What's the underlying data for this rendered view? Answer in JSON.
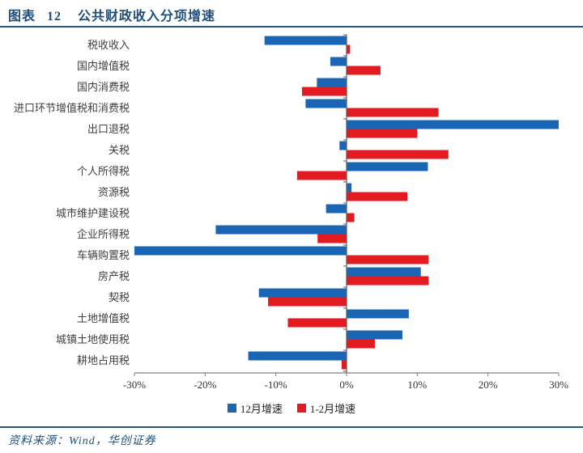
{
  "header": {
    "tag": "图表",
    "number": "12",
    "title": "公共财政收入分项增速"
  },
  "chart_data": {
    "type": "bar",
    "orientation": "horizontal",
    "categories": [
      "税收收入",
      "国内增值税",
      "国内消费税",
      "进口环节增值税和消费税",
      "出口退税",
      "关税",
      "个人所得税",
      "资源税",
      "城市维护建设税",
      "企业所得税",
      "车辆购置税",
      "房产税",
      "契税",
      "土地增值税",
      "城镇土地使用税",
      "耕地占用税"
    ],
    "series": [
      {
        "name": "12月增速",
        "color": "#1b65b5",
        "values": [
          -11.6,
          -2.3,
          -4.2,
          -5.8,
          30.0,
          -1.0,
          11.5,
          0.7,
          -2.9,
          -18.5,
          -30.0,
          10.5,
          -12.4,
          8.8,
          7.9,
          -13.9
        ]
      },
      {
        "name": "1-2月增速",
        "color": "#e31a20",
        "values": [
          0.5,
          4.8,
          -6.3,
          13.0,
          10.0,
          14.4,
          -7.0,
          8.6,
          1.1,
          -4.1,
          11.6,
          11.6,
          -11.1,
          -8.3,
          4.0,
          -0.7
        ]
      }
    ],
    "xlim": [
      -30,
      30
    ],
    "xticks": [
      -30,
      -20,
      -10,
      0,
      10,
      20,
      30
    ],
    "xtick_labels": [
      "-30%",
      "-20%",
      "-10%",
      "0%",
      "10%",
      "20%",
      "30%"
    ],
    "grid": false,
    "legend_position": "bottom",
    "axis_color": "#808080",
    "label_color": "#404040"
  },
  "footer": {
    "source": "资料来源：Wind，华创证券"
  }
}
